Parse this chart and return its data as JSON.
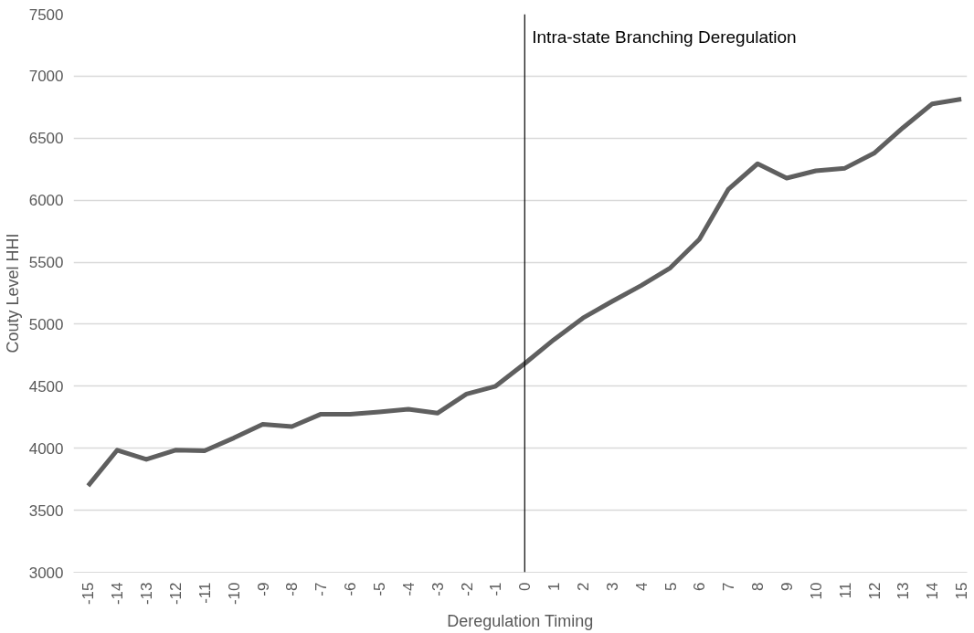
{
  "chart_data": {
    "type": "line",
    "xlabel": "Deregulation Timing",
    "ylabel": "Couty Level HHI",
    "x": [
      -15,
      -14,
      -13,
      -12,
      -11,
      -10,
      -9,
      -8,
      -7,
      -6,
      -5,
      -4,
      -3,
      -2,
      -1,
      0,
      1,
      2,
      3,
      4,
      5,
      6,
      7,
      8,
      9,
      10,
      11,
      12,
      13,
      14,
      15
    ],
    "series": [
      {
        "color": "#5f5f5f",
        "values": [
          3697,
          3985,
          3910,
          3985,
          3980,
          4082,
          4193,
          4175,
          4275,
          4275,
          4293,
          4314,
          4283,
          4437,
          4500,
          4683,
          4875,
          5050,
          5184,
          5312,
          5454,
          5685,
          6089,
          6294,
          6178,
          6237,
          6258,
          6378,
          6585,
          6777,
          6815
        ]
      }
    ],
    "xlim": [
      -15.5,
      15.2
    ],
    "xticks": [
      -15,
      -14,
      -13,
      -12,
      -11,
      -10,
      -9,
      -8,
      -7,
      -6,
      -5,
      -4,
      -3,
      -2,
      -1,
      0,
      1,
      2,
      3,
      4,
      5,
      6,
      7,
      8,
      9,
      10,
      11,
      12,
      13,
      14,
      15
    ],
    "ylim": [
      3000,
      7500
    ],
    "yticks": [
      3000,
      3500,
      4000,
      4500,
      5000,
      5500,
      6000,
      6500,
      7000,
      7500
    ],
    "ref_lines": [
      {
        "axis": "x",
        "value": 0,
        "label": "Intra-state Branching Deregulation",
        "color": "#000000"
      }
    ],
    "grid": "y",
    "marker": "none",
    "line_style": "solid"
  }
}
